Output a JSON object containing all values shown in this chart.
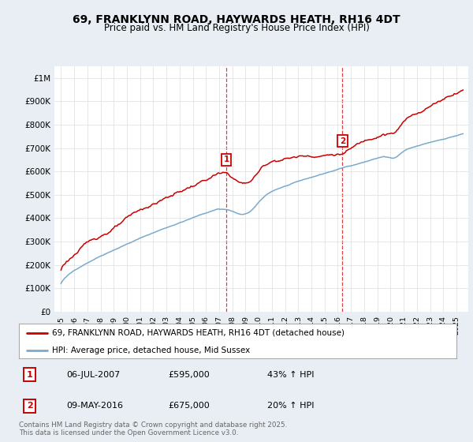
{
  "title1": "69, FRANKLYNN ROAD, HAYWARDS HEATH, RH16 4DT",
  "title2": "Price paid vs. HM Land Registry's House Price Index (HPI)",
  "ylabel_ticks": [
    "£0",
    "£100K",
    "£200K",
    "£300K",
    "£400K",
    "£500K",
    "£600K",
    "£700K",
    "£800K",
    "£900K",
    "£1M"
  ],
  "ytick_values": [
    0,
    100000,
    200000,
    300000,
    400000,
    500000,
    600000,
    700000,
    800000,
    900000,
    1000000
  ],
  "x_start_year": 1995,
  "x_end_year": 2025,
  "red_color": "#cc0000",
  "blue_color": "#7aaacc",
  "marker1_year": 2007.54,
  "marker1_value": 595000,
  "marker2_year": 2016.36,
  "marker2_value": 675000,
  "legend_line1": "69, FRANKLYNN ROAD, HAYWARDS HEATH, RH16 4DT (detached house)",
  "legend_line2": "HPI: Average price, detached house, Mid Sussex",
  "annotation1_date": "06-JUL-2007",
  "annotation1_price": "£595,000",
  "annotation1_hpi": "43% ↑ HPI",
  "annotation2_date": "09-MAY-2016",
  "annotation2_price": "£675,000",
  "annotation2_hpi": "20% ↑ HPI",
  "footer": "Contains HM Land Registry data © Crown copyright and database right 2025.\nThis data is licensed under the Open Government Licence v3.0.",
  "bg_color": "#e8eef4",
  "plot_bg_color": "#ffffff"
}
